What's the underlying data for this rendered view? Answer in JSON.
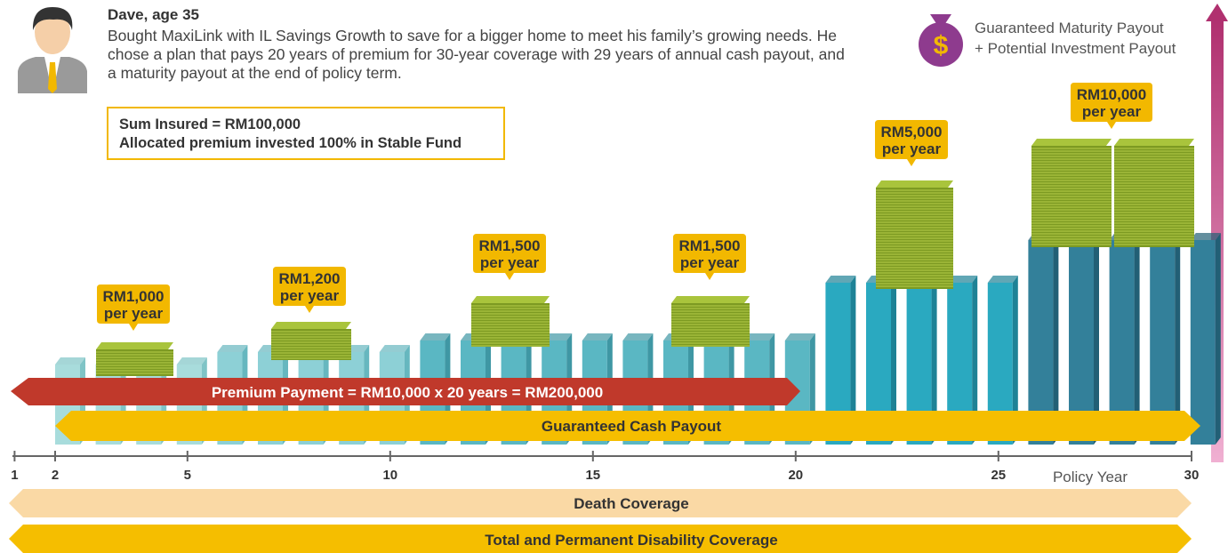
{
  "persona": {
    "name": "Dave, age 35",
    "description": "Bought MaxiLink with IL Savings Growth to save for a bigger home to meet his family’s growing needs. He chose a plan that pays 20 years of premium for 30-year coverage with 29 years of annual cash payout, and a maturity payout at the end of policy term."
  },
  "plan_box": {
    "lines": [
      "Sum Insured = RM100,000",
      "Allocated premium invested 100% in Stable Fund"
    ]
  },
  "legend": {
    "lines": [
      "Guaranteed Maturity Payout",
      "+ Potential Investment Payout"
    ]
  },
  "payouts": [
    {
      "amount": "RM1,000",
      "period": "per year"
    },
    {
      "amount": "RM1,200",
      "period": "per year"
    },
    {
      "amount": "RM1,500",
      "period": "per year"
    },
    {
      "amount": "RM1,500",
      "period": "per year"
    },
    {
      "amount": "RM5,000",
      "period": "per year"
    },
    {
      "amount": "RM10,000",
      "period": "per year"
    }
  ],
  "bands": {
    "premium": "Premium Payment = RM10,000 x 20 years = RM200,000",
    "cash_payout": "Guaranteed Cash Payout",
    "death": "Death Coverage",
    "tpd": "Total and Permanent Disability Coverage"
  },
  "axis": {
    "ticks": [
      "1",
      "2",
      "5",
      "10",
      "15",
      "20",
      "25",
      "30"
    ],
    "label": "Policy Year"
  }
}
